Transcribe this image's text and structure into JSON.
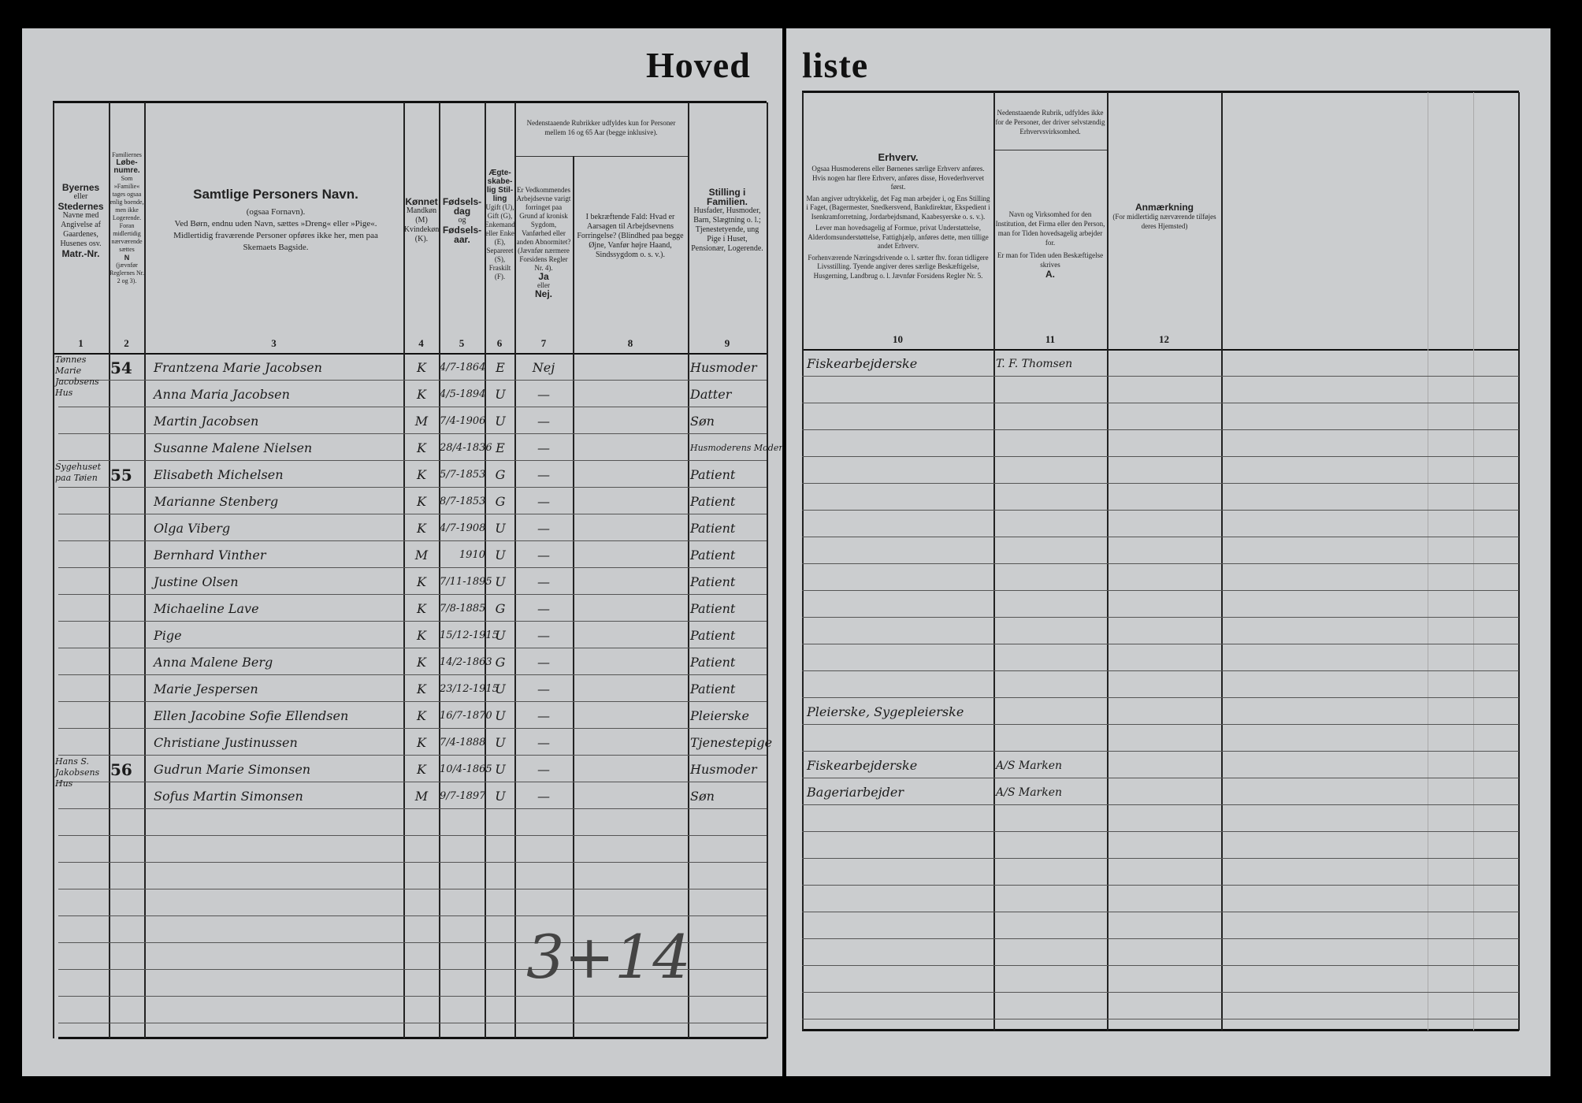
{
  "title": {
    "left": "Hoved",
    "right": "liste"
  },
  "columns": {
    "c1": {
      "l1": "Byernes",
      "l2": "eller",
      "l3": "Stedernes",
      "l4": "Navne med Angivelse af Gaardenes, Husenes osv.",
      "l5": "Matr.-Nr.",
      "num": "1"
    },
    "c2": {
      "l1": "Familiernes",
      "l2": "Løbe-numre.",
      "l3": "Som »Familie« tages ogsaa enlig boende, men ikke Logerende. Foran midlertidig nærværende sættes",
      "l4": "N",
      "l5": "(jævnfør Reglernes Nr. 2 og 3).",
      "num": "2"
    },
    "c3": {
      "l1": "Samtlige Personers Navn.",
      "l2": "(ogsaa Fornavn).",
      "l3": "Ved Børn, endnu uden Navn, sættes »Dreng« eller »Pige«.",
      "l4": "Midlertidig fraværende Personer opføres ikke her, men paa Skemaets Bagside.",
      "num": "3"
    },
    "c4": {
      "l1": "Kønnet",
      "l2": "Mandkøn (M) Kvindekøn (K).",
      "num": "4"
    },
    "c5": {
      "l1": "Fødsels-dag",
      "l2": "og",
      "l3": "Fødsels-aar.",
      "num": "5"
    },
    "c6": {
      "l1": "Ægte-skabe-lig Stil-ling",
      "l2": "Ugift (U), Gift (G), Enkemand eller Enke (E), Separeret (S), Fraskilt (F).",
      "num": "6"
    },
    "c78_note": "Nedenstaaende Rubrikker udfyldes kun for Personer mellem 16 og 65 Aar (begge inklusive).",
    "c7": {
      "l1": "Er Vedkommendes Arbejdsevne varigt forringet paa Grund af kronisk Sygdom, Vanførhed eller anden Abnormitet? (Jævnfør nærmere Forsidens Regler Nr. 4).",
      "l2": "Ja",
      "l3": "eller",
      "l4": "Nej.",
      "num": "7"
    },
    "c8": {
      "l1": "I bekræftende Fald: Hvad er Aarsagen til Arbejdsevnens Forringelse? (Blindhed paa begge Øjne, Vanfør højre Haand, Sindssygdom o. s. v.).",
      "num": "8"
    },
    "c9": {
      "l1": "Stilling i Familien.",
      "l2": "Husfader, Husmoder, Barn, Slægtning o. l.; Tjenestetyende, ung Pige i Huset, Pensionær, Logerende.",
      "num": "9"
    },
    "c10": {
      "l1": "Erhverv.",
      "l2": "Ogsaa Husmoderens eller Børnenes særlige Erhverv anføres. Hvis nogen har flere Erhverv, anføres disse, Hovederhvervet først.",
      "l3": "Man angiver udtrykkelig, det Fag man arbejder i, og Ens Stilling i Faget, (Bagermester, Snedkersvend, Bankdirektør, Ekspedient i Isenkramforretning, Jordarbejdsmand, Kaabesyerske o. s. v.).",
      "l4": "Lever man hovedsagelig af Formue, privat Understøttelse, Alderdomsunderstøttelse, Fattighjælp, anføres dette, men tillige andet Erhverv.",
      "l5": "Forhenværende Næringsdrivende o. l. sætter fhv. foran tidligere Livsstilling. Tyende angiver deres særlige Beskæftigelse, Husgerning, Landbrug o. l. Jævnfør Forsidens Regler Nr. 5.",
      "num": "10"
    },
    "c11": {
      "note": "Nedenstaaende Rubrik, udfyldes ikke for de Personer, der driver selvstændig Erhvervsvirksomhed.",
      "l1": "Navn og Virksomhed for den Institution, det Firma eller den Person, man for Tiden hovedsagelig arbejder for.",
      "l2": "Er man for Tiden uden Beskæftigelse skrives",
      "l3": "A.",
      "num": "11"
    },
    "c12": {
      "l1": "Anmærkning",
      "l2": "(For midlertidig nærværende tilføjes deres Hjemsted)",
      "num": "12"
    }
  },
  "rows": [
    {
      "place": "Tønnes Marie Jacobsens Hus",
      "fam": "54",
      "name": "Frantzena Marie Jacobsen",
      "sex": "K",
      "birth": "4/7-1864",
      "civil": "E",
      "ability": "Nej",
      "cause": "",
      "role": "Husmoder",
      "occupation": "Fiskearbejderske",
      "employer": "T. F. Thomsen",
      "note": ""
    },
    {
      "place": "",
      "fam": "",
      "name": "Anna Maria Jacobsen",
      "sex": "K",
      "birth": "4/5-1894",
      "civil": "U",
      "ability": "—",
      "cause": "",
      "role": "Datter",
      "occupation": "",
      "employer": "",
      "note": ""
    },
    {
      "place": "",
      "fam": "",
      "name": "Martin Jacobsen",
      "sex": "M",
      "birth": "7/4-1906",
      "civil": "U",
      "ability": "—",
      "cause": "",
      "role": "Søn",
      "occupation": "",
      "employer": "",
      "note": ""
    },
    {
      "place": "",
      "fam": "",
      "name": "Susanne Malene Nielsen",
      "sex": "K",
      "birth": "28/4-1836",
      "civil": "E",
      "ability": "—",
      "cause": "",
      "role": "Husmoderens Moder",
      "occupation": "",
      "employer": "",
      "note": ""
    },
    {
      "place": "Sygehuset paa Tøien",
      "fam": "55",
      "name": "Elisabeth Michelsen",
      "sex": "K",
      "birth": "5/7-1853",
      "civil": "G",
      "ability": "—",
      "cause": "",
      "role": "Patient",
      "occupation": "",
      "employer": "",
      "note": ""
    },
    {
      "place": "",
      "fam": "",
      "name": "Marianne Stenberg",
      "sex": "K",
      "birth": "8/7-1853",
      "civil": "G",
      "ability": "—",
      "cause": "",
      "role": "Patient",
      "occupation": "",
      "employer": "",
      "note": ""
    },
    {
      "place": "",
      "fam": "",
      "name": "Olga Viberg",
      "sex": "K",
      "birth": "4/7-1908",
      "civil": "U",
      "ability": "—",
      "cause": "",
      "role": "Patient",
      "occupation": "",
      "employer": "",
      "note": ""
    },
    {
      "place": "",
      "fam": "",
      "name": "Bernhard Vinther",
      "sex": "M",
      "birth": "1910",
      "civil": "U",
      "ability": "—",
      "cause": "",
      "role": "Patient",
      "occupation": "",
      "employer": "",
      "note": ""
    },
    {
      "place": "",
      "fam": "",
      "name": "Justine Olsen",
      "sex": "K",
      "birth": "7/11-1895",
      "civil": "U",
      "ability": "—",
      "cause": "",
      "role": "Patient",
      "occupation": "",
      "employer": "",
      "note": ""
    },
    {
      "place": "",
      "fam": "",
      "name": "Michaeline Lave",
      "sex": "K",
      "birth": "7/8-1885",
      "civil": "G",
      "ability": "—",
      "cause": "",
      "role": "Patient",
      "occupation": "",
      "employer": "",
      "note": ""
    },
    {
      "place": "",
      "fam": "",
      "name": "Pige",
      "sex": "K",
      "birth": "15/12-1915",
      "civil": "U",
      "ability": "—",
      "cause": "",
      "role": "Patient",
      "occupation": "",
      "employer": "",
      "note": ""
    },
    {
      "place": "",
      "fam": "",
      "name": "Anna Malene Berg",
      "sex": "K",
      "birth": "14/2-1863",
      "civil": "G",
      "ability": "—",
      "cause": "",
      "role": "Patient",
      "occupation": "",
      "employer": "",
      "note": ""
    },
    {
      "place": "",
      "fam": "",
      "name": "Marie Jespersen",
      "sex": "K",
      "birth": "23/12-1915",
      "civil": "U",
      "ability": "—",
      "cause": "",
      "role": "Patient",
      "occupation": "",
      "employer": "",
      "note": ""
    },
    {
      "place": "",
      "fam": "",
      "name": "Ellen Jacobine Sofie Ellendsen",
      "sex": "K",
      "birth": "16/7-1870",
      "civil": "U",
      "ability": "—",
      "cause": "",
      "role": "Pleierske",
      "occupation": "Pleierske, Sygepleierske",
      "employer": "",
      "note": ""
    },
    {
      "place": "",
      "fam": "",
      "name": "Christiane Justinussen",
      "sex": "K",
      "birth": "7/4-1888",
      "civil": "U",
      "ability": "—",
      "cause": "",
      "role": "Tjenestepige",
      "occupation": "",
      "employer": "",
      "note": ""
    },
    {
      "place": "Hans S. Jakobsens Hus",
      "fam": "56",
      "name": "Gudrun Marie Simonsen",
      "sex": "K",
      "birth": "10/4-1865",
      "civil": "U",
      "ability": "—",
      "cause": "",
      "role": "Husmoder",
      "occupation": "Fiskearbejderske",
      "employer": "A/S Marken",
      "note": ""
    },
    {
      "place": "",
      "fam": "",
      "name": "Sofus Martin Simonsen",
      "sex": "M",
      "birth": "9/7-1897",
      "civil": "U",
      "ability": "—",
      "cause": "",
      "role": "Søn",
      "occupation": "Bageriarbejder",
      "employer": "A/S Marken",
      "note": ""
    }
  ],
  "tally": "3+14"
}
